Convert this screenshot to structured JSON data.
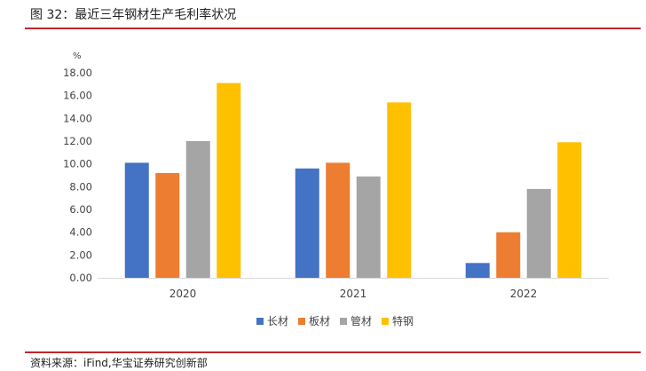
{
  "figure": {
    "title": "图 32：最近三年钢材生产毛利率状况",
    "source": "资料来源：iFind,华宝证券研究创新部"
  },
  "colors": {
    "rule": "#c0262c",
    "series": [
      "#4472c4",
      "#ed7d31",
      "#a5a5a5",
      "#ffc000"
    ]
  },
  "chart_data": {
    "type": "bar",
    "title": "",
    "xlabel": "",
    "ylabel": "%",
    "categories": [
      "2020",
      "2021",
      "2022"
    ],
    "series": [
      {
        "name": "长材",
        "values": [
          10.1,
          9.6,
          1.3
        ]
      },
      {
        "name": "板材",
        "values": [
          9.2,
          10.1,
          4.0
        ]
      },
      {
        "name": "管材",
        "values": [
          12.0,
          8.9,
          7.8
        ]
      },
      {
        "name": "特钢",
        "values": [
          17.1,
          15.4,
          11.9
        ]
      }
    ],
    "ylim": [
      0,
      18
    ],
    "yticks": [
      "0.00",
      "2.00",
      "4.00",
      "6.00",
      "8.00",
      "10.00",
      "12.00",
      "14.00",
      "16.00",
      "18.00"
    ],
    "grid": false,
    "legend_position": "bottom"
  }
}
